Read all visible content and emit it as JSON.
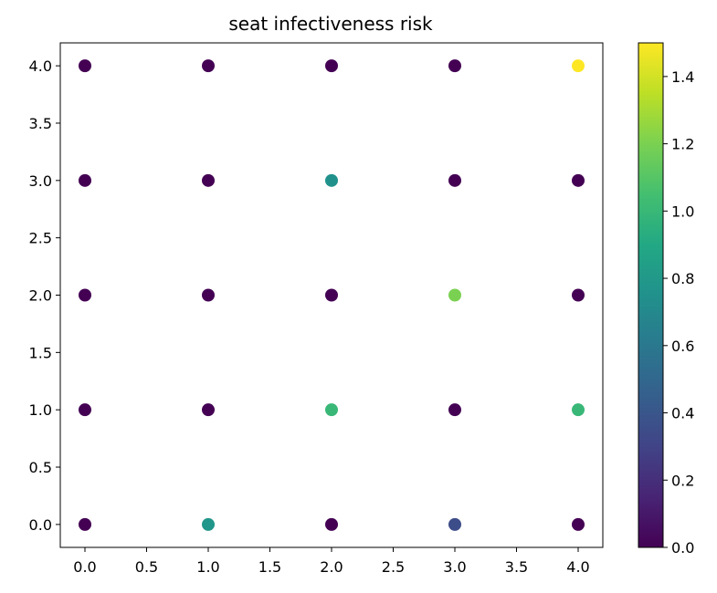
{
  "chart_data": {
    "type": "scatter",
    "title": "seat infectiveness risk",
    "xlabel": "",
    "ylabel": "",
    "xlim": [
      -0.2,
      4.2
    ],
    "ylim": [
      -0.2,
      4.2
    ],
    "xticks": [
      "0.0",
      "0.5",
      "1.0",
      "1.5",
      "2.0",
      "2.5",
      "3.0",
      "3.5",
      "4.0"
    ],
    "yticks": [
      "0.0",
      "0.5",
      "1.0",
      "1.5",
      "2.0",
      "2.5",
      "3.0",
      "3.5",
      "4.0"
    ],
    "colormap": "viridis",
    "color_range": [
      0.0,
      1.5
    ],
    "colorbar_ticks": [
      "0.0",
      "0.2",
      "0.4",
      "0.6",
      "0.8",
      "1.0",
      "1.2",
      "1.4"
    ],
    "grid": false,
    "points": [
      {
        "x": 0,
        "y": 4,
        "value": 0.0
      },
      {
        "x": 1,
        "y": 4,
        "value": 0.0
      },
      {
        "x": 2,
        "y": 4,
        "value": 0.0
      },
      {
        "x": 3,
        "y": 4,
        "value": 0.0
      },
      {
        "x": 4,
        "y": 4,
        "value": 1.5
      },
      {
        "x": 0,
        "y": 3,
        "value": 0.0
      },
      {
        "x": 1,
        "y": 3,
        "value": 0.0
      },
      {
        "x": 2,
        "y": 3,
        "value": 0.75
      },
      {
        "x": 3,
        "y": 3,
        "value": 0.0
      },
      {
        "x": 4,
        "y": 3,
        "value": 0.0
      },
      {
        "x": 0,
        "y": 2,
        "value": 0.0
      },
      {
        "x": 1,
        "y": 2,
        "value": 0.0
      },
      {
        "x": 2,
        "y": 2,
        "value": 0.0
      },
      {
        "x": 3,
        "y": 2,
        "value": 1.2
      },
      {
        "x": 4,
        "y": 2,
        "value": 0.0
      },
      {
        "x": 0,
        "y": 1,
        "value": 0.0
      },
      {
        "x": 1,
        "y": 1,
        "value": 0.0
      },
      {
        "x": 2,
        "y": 1,
        "value": 1.0
      },
      {
        "x": 3,
        "y": 1,
        "value": 0.0
      },
      {
        "x": 4,
        "y": 1,
        "value": 1.0
      },
      {
        "x": 0,
        "y": 0,
        "value": 0.0
      },
      {
        "x": 1,
        "y": 0,
        "value": 0.78
      },
      {
        "x": 2,
        "y": 0,
        "value": 0.0
      },
      {
        "x": 3,
        "y": 0,
        "value": 0.35
      },
      {
        "x": 4,
        "y": 0,
        "value": 0.0
      }
    ]
  }
}
